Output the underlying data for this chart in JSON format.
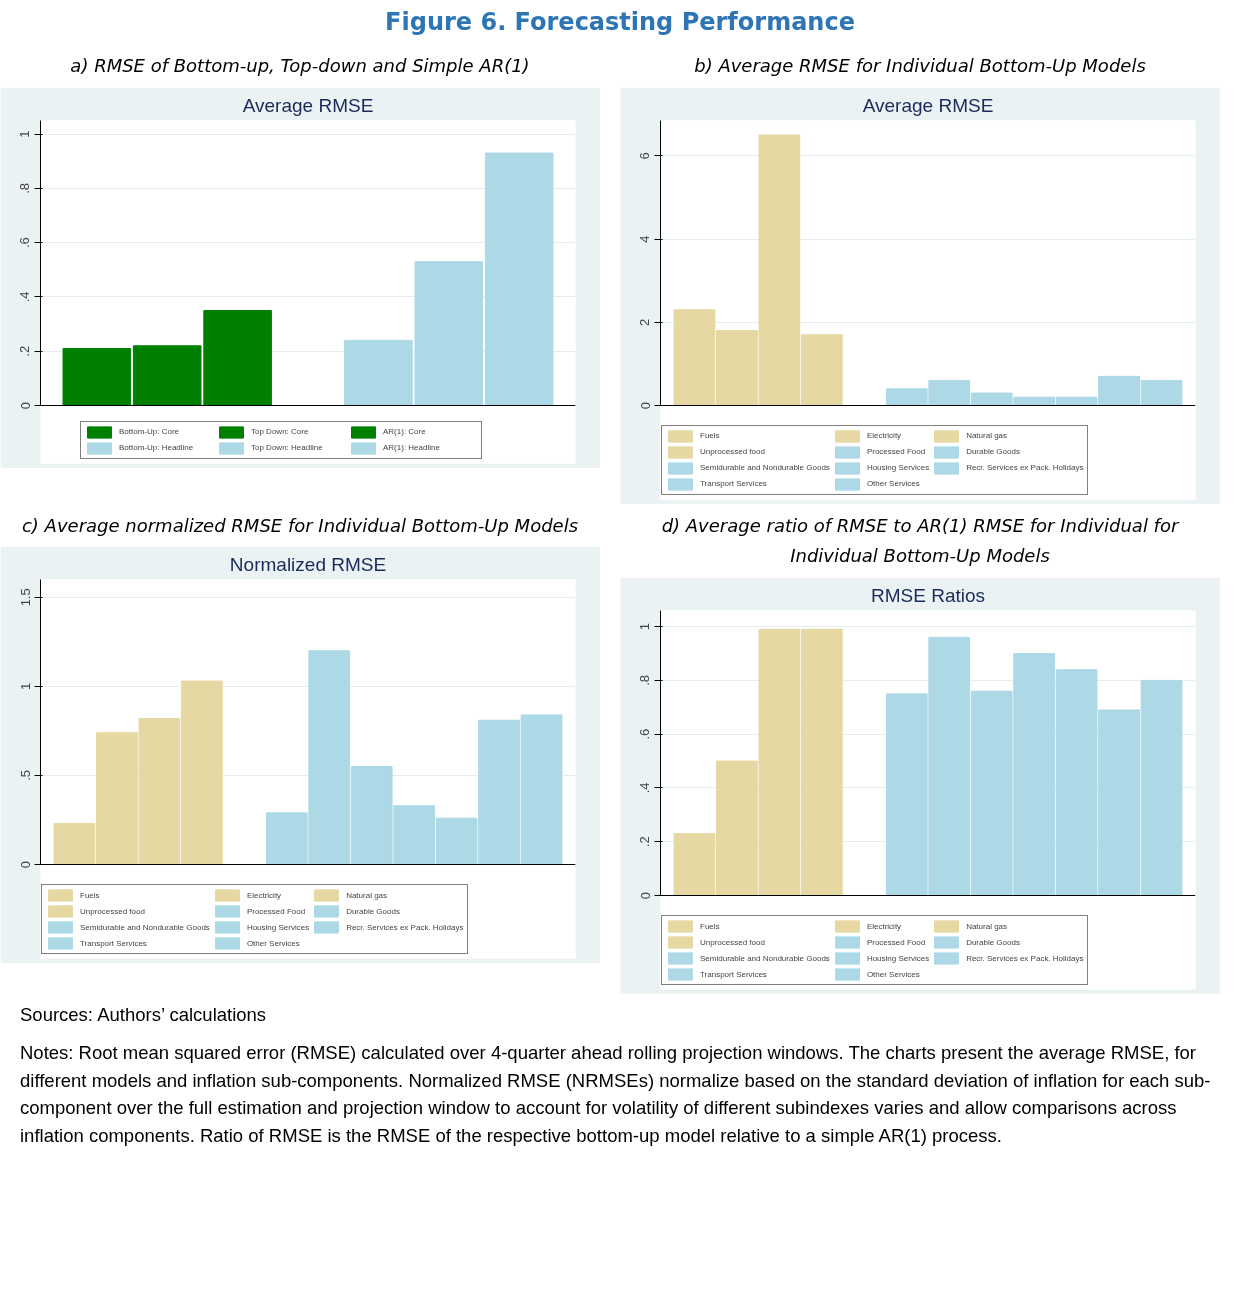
{
  "chart_data": [
    {
      "type": "other",
      "title": "Figure 6. Forecasting Performance"
    },
    {
      "type": "bar",
      "subtitle": "a)     RMSE of Bottom-up, Top-down and Simple AR(1)",
      "title": "Average RMSE",
      "categories": [
        null,
        null,
        null,
        null,
        null,
        null,
        null
      ],
      "series": [
        {
          "name": "Bottom-Up: Core",
          "color": "#008000",
          "values": [
            0.21,
            null,
            null,
            null,
            null,
            null,
            null
          ]
        },
        {
          "name": "Top Down: Core",
          "color": "#008000",
          "values": [
            null,
            0.22,
            null,
            null,
            null,
            null,
            null
          ]
        },
        {
          "name": "AR(1): Core",
          "color": "#008000",
          "values": [
            null,
            null,
            0.35,
            null,
            null,
            null,
            null
          ]
        },
        {
          "name": "Bottom-Up: Headline",
          "color": "#add8e6",
          "values": [
            null,
            null,
            null,
            null,
            0.24,
            null,
            null
          ]
        },
        {
          "name": "Top Down: Headline",
          "color": "#add8e6",
          "values": [
            null,
            null,
            null,
            null,
            null,
            0.53,
            null
          ]
        },
        {
          "name": "AR(1): Headline",
          "color": "#add8e6",
          "values": [
            null,
            null,
            null,
            null,
            null,
            null,
            0.93
          ]
        }
      ],
      "ylim": [
        0,
        1.05
      ],
      "yticks": [
        0,
        {
          "value": 0.2,
          "label": ".2"
        },
        {
          "value": 0.4,
          "label": ".4"
        },
        {
          "value": 0.6,
          "label": ".6"
        },
        {
          "value": 0.8,
          "label": ".8"
        },
        1
      ],
      "grid": "y",
      "legend": "bottom",
      "tick_labels": "y"
    },
    {
      "type": "bar",
      "subtitle": "b)     Average RMSE for Individual Bottom-Up Models",
      "title": "Average RMSE",
      "categories": [
        null,
        null,
        null,
        null,
        null,
        null,
        null,
        null,
        null,
        null,
        null,
        null
      ],
      "series": [
        {
          "name": "Fuels",
          "color": "#e5d8a2",
          "values": [
            2.3,
            null,
            null,
            null,
            null,
            null,
            null,
            null,
            null,
            null,
            null,
            null
          ]
        },
        {
          "name": "Electricity",
          "color": "#e5d8a2",
          "values": [
            null,
            1.8,
            null,
            null,
            null,
            null,
            null,
            null,
            null,
            null,
            null,
            null
          ]
        },
        {
          "name": "Natural gas",
          "color": "#e5d8a2",
          "values": [
            null,
            null,
            6.5,
            null,
            null,
            null,
            null,
            null,
            null,
            null,
            null,
            null
          ]
        },
        {
          "name": "Unprocessed food",
          "color": "#e5d8a2",
          "values": [
            null,
            null,
            null,
            1.7,
            null,
            null,
            null,
            null,
            null,
            null,
            null,
            null
          ]
        },
        {
          "name": "Processed Food",
          "color": "#add8e6",
          "values": [
            null,
            null,
            null,
            null,
            null,
            0.4,
            null,
            null,
            null,
            null,
            null,
            null
          ]
        },
        {
          "name": "Durable Goods",
          "color": "#add8e6",
          "values": [
            null,
            null,
            null,
            null,
            null,
            null,
            0.6,
            null,
            null,
            null,
            null,
            null
          ]
        },
        {
          "name": "Semidurable and Nondurable Goods",
          "color": "#add8e6",
          "values": [
            null,
            null,
            null,
            null,
            null,
            null,
            null,
            0.3,
            null,
            null,
            null,
            null
          ]
        },
        {
          "name": "Housing Services",
          "color": "#add8e6",
          "values": [
            null,
            null,
            null,
            null,
            null,
            null,
            null,
            null,
            0.2,
            null,
            null,
            null
          ]
        },
        {
          "name": "Recr. Services ex Pack. Holidays",
          "color": "#add8e6",
          "values": [
            null,
            null,
            null,
            null,
            null,
            null,
            null,
            null,
            null,
            0.2,
            null,
            null
          ]
        },
        {
          "name": "Transport Services",
          "color": "#add8e6",
          "values": [
            null,
            null,
            null,
            null,
            null,
            null,
            null,
            null,
            null,
            null,
            0.7,
            null
          ]
        },
        {
          "name": "Other Services",
          "color": "#add8e6",
          "values": [
            null,
            null,
            null,
            null,
            null,
            null,
            null,
            null,
            null,
            null,
            null,
            0.6
          ]
        }
      ],
      "ylim": [
        0,
        6.85
      ],
      "yticks": [
        0,
        2,
        4,
        6
      ],
      "grid": "y",
      "legend": "bottom",
      "tick_labels": "y"
    },
    {
      "type": "bar",
      "subtitle": "c) Average normalized RMSE for Individual Bottom-Up Models",
      "title": "Normalized RMSE",
      "categories": [
        null,
        null,
        null,
        null,
        null,
        null,
        null,
        null,
        null,
        null,
        null,
        null
      ],
      "series": [
        {
          "name": "Fuels",
          "color": "#e5d8a2",
          "values": [
            0.23,
            null,
            null,
            null,
            null,
            null,
            null,
            null,
            null,
            null,
            null,
            null
          ]
        },
        {
          "name": "Electricity",
          "color": "#e5d8a2",
          "values": [
            null,
            0.74,
            null,
            null,
            null,
            null,
            null,
            null,
            null,
            null,
            null,
            null
          ]
        },
        {
          "name": "Natural gas",
          "color": "#e5d8a2",
          "values": [
            null,
            null,
            0.82,
            null,
            null,
            null,
            null,
            null,
            null,
            null,
            null,
            null
          ]
        },
        {
          "name": "Unprocessed food",
          "color": "#e5d8a2",
          "values": [
            null,
            null,
            null,
            1.03,
            null,
            null,
            null,
            null,
            null,
            null,
            null,
            null
          ]
        },
        {
          "name": "Processed Food",
          "color": "#add8e6",
          "values": [
            null,
            null,
            null,
            null,
            null,
            0.29,
            null,
            null,
            null,
            null,
            null,
            null
          ]
        },
        {
          "name": "Durable Goods",
          "color": "#add8e6",
          "values": [
            null,
            null,
            null,
            null,
            null,
            null,
            1.2,
            null,
            null,
            null,
            null,
            null
          ]
        },
        {
          "name": "Semidurable and Nondurable Goods",
          "color": "#add8e6",
          "values": [
            null,
            null,
            null,
            null,
            null,
            null,
            null,
            0.55,
            null,
            null,
            null,
            null
          ]
        },
        {
          "name": "Housing Services",
          "color": "#add8e6",
          "values": [
            null,
            null,
            null,
            null,
            null,
            null,
            null,
            null,
            0.33,
            null,
            null,
            null
          ]
        },
        {
          "name": "Recr. Services ex Pack. Holidays",
          "color": "#add8e6",
          "values": [
            null,
            null,
            null,
            null,
            null,
            null,
            null,
            null,
            null,
            0.26,
            null,
            null
          ]
        },
        {
          "name": "Transport Services",
          "color": "#add8e6",
          "values": [
            null,
            null,
            null,
            null,
            null,
            null,
            null,
            null,
            null,
            null,
            0.81,
            null
          ]
        },
        {
          "name": "Other Services",
          "color": "#add8e6",
          "values": [
            null,
            null,
            null,
            null,
            null,
            null,
            null,
            null,
            null,
            null,
            null,
            0.84
          ]
        }
      ],
      "ylim": [
        0,
        1.6
      ],
      "yticks": [
        0,
        {
          "value": 0.5,
          "label": ".5"
        },
        1,
        1.5
      ],
      "grid": "y",
      "legend": "bottom",
      "tick_labels": "y"
    },
    {
      "type": "bar",
      "subtitle": "d) Average ratio of RMSE to AR(1) RMSE for Individual for Individual Bottom-Up Models",
      "title": "RMSE Ratios",
      "categories": [
        null,
        null,
        null,
        null,
        null,
        null,
        null,
        null,
        null,
        null,
        null,
        null
      ],
      "series": [
        {
          "name": "Fuels",
          "color": "#e5d8a2",
          "values": [
            0.23,
            null,
            null,
            null,
            null,
            null,
            null,
            null,
            null,
            null,
            null,
            null
          ]
        },
        {
          "name": "Electricity",
          "color": "#e5d8a2",
          "values": [
            null,
            0.5,
            null,
            null,
            null,
            null,
            null,
            null,
            null,
            null,
            null,
            null
          ]
        },
        {
          "name": "Natural gas",
          "color": "#e5d8a2",
          "values": [
            null,
            null,
            0.99,
            null,
            null,
            null,
            null,
            null,
            null,
            null,
            null,
            null
          ]
        },
        {
          "name": "Unprocessed food",
          "color": "#e5d8a2",
          "values": [
            null,
            null,
            null,
            0.99,
            null,
            null,
            null,
            null,
            null,
            null,
            null,
            null
          ]
        },
        {
          "name": "Processed Food",
          "color": "#add8e6",
          "values": [
            null,
            null,
            null,
            null,
            null,
            0.75,
            null,
            null,
            null,
            null,
            null,
            null
          ]
        },
        {
          "name": "Durable Goods",
          "color": "#add8e6",
          "values": [
            null,
            null,
            null,
            null,
            null,
            null,
            0.96,
            null,
            null,
            null,
            null,
            null
          ]
        },
        {
          "name": "Semidurable and Nondurable Goods",
          "color": "#add8e6",
          "values": [
            null,
            null,
            null,
            null,
            null,
            null,
            null,
            0.76,
            null,
            null,
            null,
            null
          ]
        },
        {
          "name": "Housing Services",
          "color": "#add8e6",
          "values": [
            null,
            null,
            null,
            null,
            null,
            null,
            null,
            null,
            0.9,
            null,
            null,
            null
          ]
        },
        {
          "name": "Recr. Services ex Pack. Holidays",
          "color": "#add8e6",
          "values": [
            null,
            null,
            null,
            null,
            null,
            null,
            null,
            null,
            null,
            0.84,
            null,
            null
          ]
        },
        {
          "name": "Transport Services",
          "color": "#add8e6",
          "values": [
            null,
            null,
            null,
            null,
            null,
            null,
            null,
            null,
            null,
            null,
            0.69,
            null
          ]
        },
        {
          "name": "Other Services",
          "color": "#add8e6",
          "values": [
            null,
            null,
            null,
            null,
            null,
            null,
            null,
            null,
            null,
            null,
            null,
            0.8
          ]
        }
      ],
      "ylim": [
        0,
        1.06
      ],
      "yticks": [
        0,
        {
          "value": 0.2,
          "label": ".2"
        },
        {
          "value": 0.4,
          "label": ".4"
        },
        {
          "value": 0.6,
          "label": ".6"
        },
        {
          "value": 0.8,
          "label": ".8"
        },
        1
      ],
      "grid": "y",
      "legend": "bottom",
      "tick_labels": "y"
    },
    {
      "type": "other",
      "annotations": [
        "Sources: Authors’ calculations",
        "Notes: Root mean squared error (RMSE) calculated over 4-quarter ahead rolling projection windows. The charts present the average RMSE, for different models and inflation sub-components. Normalized RMSE (NRMSEs) normalize based on the standard deviation of inflation for each sub-component over the full estimation and projection window to account for volatility of different subindexes varies and allow comparisons across inflation components. Ratio of RMSE is the RMSE of the respective bottom-up model relative to a simple AR(1) process."
      ]
    }
  ]
}
